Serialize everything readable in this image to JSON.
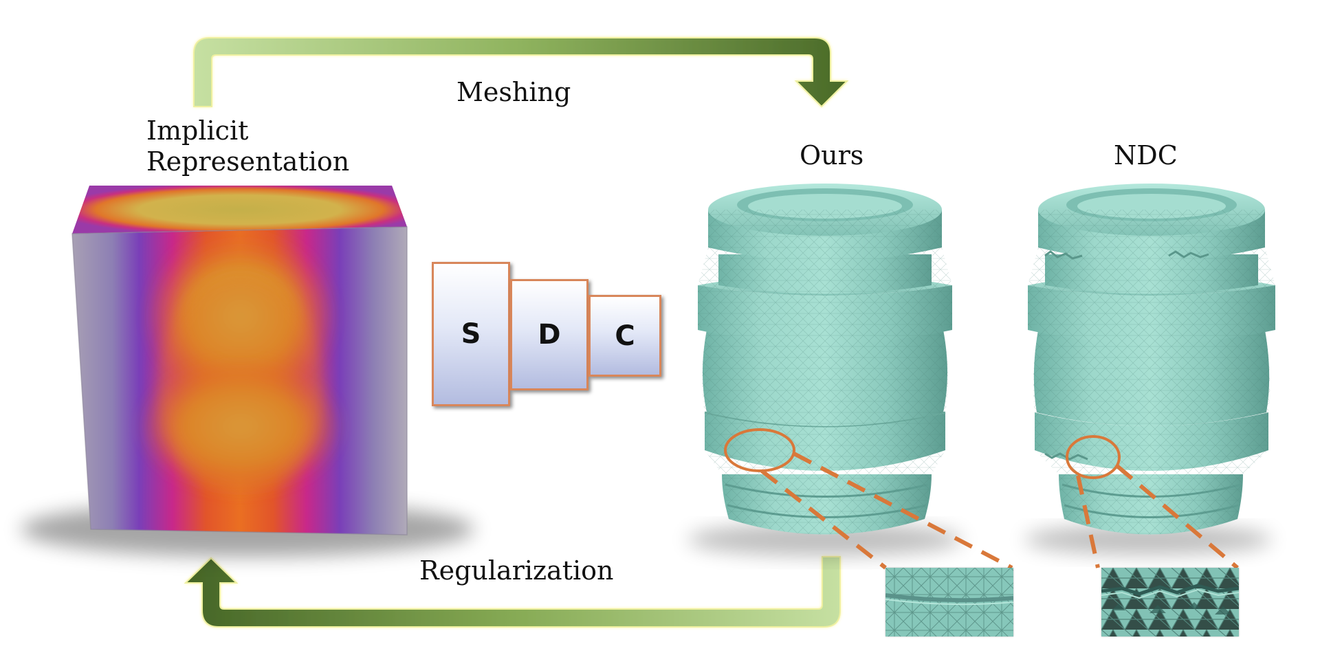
{
  "arrows": {
    "top_label": "Meshing",
    "bottom_label": "Regularization"
  },
  "implicit": {
    "label_line1": "Implicit",
    "label_line2": "Representation"
  },
  "network": {
    "blocks": [
      "S",
      "D",
      "C"
    ]
  },
  "results": {
    "ours_label": "Ours",
    "ndc_label": "NDC"
  },
  "colors": {
    "mesh": "#8fd1c4",
    "highlight": "#d9783a",
    "arrow_dark": "#4f6e2c",
    "arrow_light": "#bcd896"
  }
}
